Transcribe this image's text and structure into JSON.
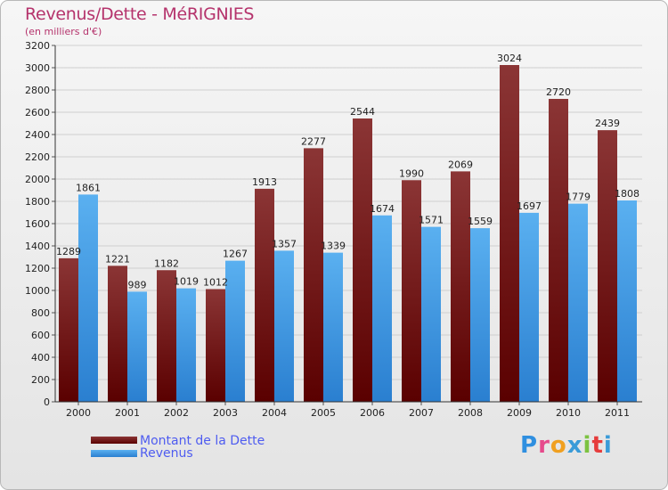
{
  "header": {
    "title": "Revenus/Dette - MéRIGNIES",
    "subtitle": "(en milliers d'€)"
  },
  "legend": {
    "debt_label": "Montant de la Dette",
    "revenue_label": "Revenus"
  },
  "branding": {
    "logo_text": "Proxiti",
    "letter_colors": [
      "#2f8fe0",
      "#e64a8c",
      "#f0a020",
      "#3a9bd8",
      "#7cc241",
      "#e63c3c",
      "#3a9bd8"
    ]
  },
  "colors": {
    "debt_dark": "#5a0000",
    "debt_light": "#8b3535",
    "revenue_dark": "#2a7fd0",
    "revenue_light": "#5ab0f0"
  },
  "chart_data": {
    "type": "bar",
    "title": "Revenus/Dette - MéRIGNIES",
    "subtitle": "(en milliers d'€)",
    "xlabel": "",
    "ylabel": "",
    "ylim": [
      0,
      3200
    ],
    "yticks": [
      0,
      200,
      400,
      600,
      800,
      1000,
      1200,
      1400,
      1600,
      1800,
      2000,
      2200,
      2400,
      2600,
      2800,
      3000,
      3200
    ],
    "grid": true,
    "legend_position": "bottom-left",
    "categories": [
      "2000",
      "2001",
      "2002",
      "2003",
      "2004",
      "2005",
      "2006",
      "2007",
      "2008",
      "2009",
      "2010",
      "2011"
    ],
    "series": [
      {
        "name": "Montant de la Dette",
        "values": [
          1289,
          1221,
          1182,
          1012,
          1913,
          2277,
          2544,
          1990,
          2069,
          3024,
          2720,
          2439
        ]
      },
      {
        "name": "Revenus",
        "values": [
          1861,
          989,
          1019,
          1267,
          1357,
          1339,
          1674,
          1571,
          1559,
          1697,
          1779,
          1808
        ]
      }
    ]
  }
}
